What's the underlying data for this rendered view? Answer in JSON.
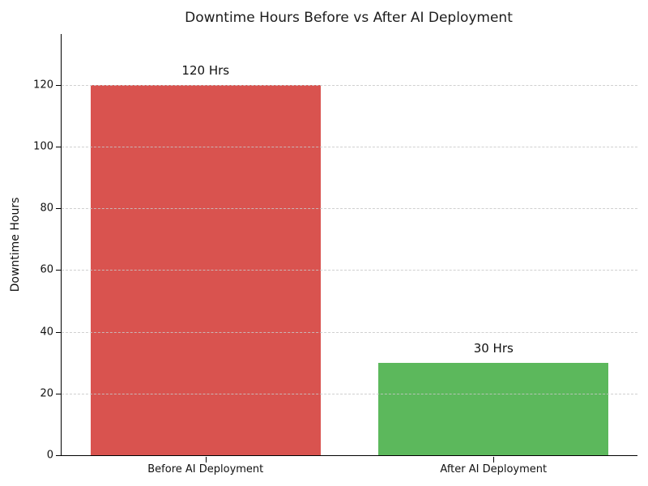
{
  "chart_data": {
    "type": "bar",
    "title": "Downtime Hours Before vs After AI Deployment",
    "ylabel": "Downtime Hours",
    "xlabel": "",
    "categories": [
      "Before AI Deployment",
      "After AI Deployment"
    ],
    "values": [
      120,
      30
    ],
    "value_labels": [
      "120 Hrs",
      "30 Hrs"
    ],
    "bar_colors": [
      "#d9534f",
      "#5cb85c"
    ],
    "yticks": [
      0,
      20,
      40,
      60,
      80,
      100,
      120
    ],
    "ylim": [
      0,
      136.5
    ],
    "grid": "horizontal-dashed",
    "legend_position": "none",
    "bar_width_fraction": 0.8
  }
}
